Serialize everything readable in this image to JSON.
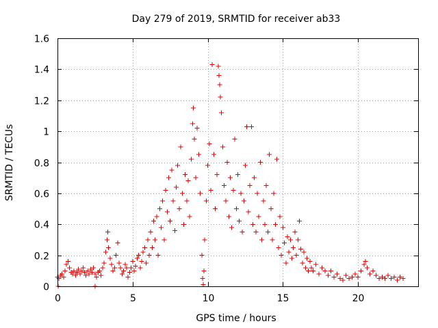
{
  "chart_data": {
    "type": "scatter",
    "title": "Day 279 of 2019, SRMTID for receiver ab33",
    "xlabel": "GPS time / hours",
    "ylabel": "SRMTID / TECUs",
    "xlim": [
      0,
      24
    ],
    "ylim": [
      0,
      1.6
    ],
    "xticks": [
      "0",
      "5",
      "10",
      "15",
      "20"
    ],
    "yticks": [
      "0",
      "0.2",
      "0.4",
      "0.6",
      "0.8",
      "1",
      "1.2",
      "1.4",
      "1.6"
    ],
    "grid": true,
    "marker": "plus",
    "color": "#e00000",
    "series": [
      {
        "name": "SRMTID",
        "points": [
          [
            0.0,
            0.06
          ],
          [
            0.1,
            0.05
          ],
          [
            0.2,
            0.07
          ],
          [
            0.3,
            0.08
          ],
          [
            0.4,
            0.06
          ],
          [
            0.5,
            0.1
          ],
          [
            0.6,
            0.14
          ],
          [
            0.7,
            0.16
          ],
          [
            0.8,
            0.12
          ],
          [
            0.9,
            0.09
          ],
          [
            1.0,
            0.08
          ],
          [
            1.1,
            0.1
          ],
          [
            1.2,
            0.07
          ],
          [
            1.3,
            0.09
          ],
          [
            1.4,
            0.11
          ],
          [
            1.5,
            0.08
          ],
          [
            1.6,
            0.1
          ],
          [
            1.7,
            0.12
          ],
          [
            1.8,
            0.09
          ],
          [
            1.9,
            0.07
          ],
          [
            2.0,
            0.1
          ],
          [
            2.1,
            0.08
          ],
          [
            2.2,
            0.11
          ],
          [
            2.3,
            0.09
          ],
          [
            2.4,
            0.12
          ],
          [
            2.5,
            0.08
          ],
          [
            2.6,
            0.06
          ],
          [
            2.7,
            0.09
          ],
          [
            2.8,
            0.1
          ],
          [
            2.9,
            0.07
          ],
          [
            3.0,
            0.12
          ],
          [
            3.1,
            0.15
          ],
          [
            3.2,
            0.22
          ],
          [
            3.3,
            0.3
          ],
          [
            3.35,
            0.35
          ],
          [
            3.4,
            0.25
          ],
          [
            3.5,
            0.18
          ],
          [
            3.6,
            0.14
          ],
          [
            3.7,
            0.1
          ],
          [
            3.8,
            0.12
          ],
          [
            3.9,
            0.2
          ],
          [
            4.0,
            0.28
          ],
          [
            4.1,
            0.15
          ],
          [
            4.2,
            0.12
          ],
          [
            4.3,
            0.08
          ],
          [
            4.4,
            0.1
          ],
          [
            4.5,
            0.14
          ],
          [
            4.6,
            0.12
          ],
          [
            4.7,
            0.06
          ],
          [
            4.8,
            0.09
          ],
          [
            4.9,
            0.12
          ],
          [
            5.0,
            0.16
          ],
          [
            5.1,
            0.1
          ],
          [
            5.2,
            0.13
          ],
          [
            5.3,
            0.18
          ],
          [
            5.4,
            0.2
          ],
          [
            5.5,
            0.12
          ],
          [
            5.6,
            0.16
          ],
          [
            5.7,
            0.22
          ],
          [
            5.8,
            0.25
          ],
          [
            5.9,
            0.15
          ],
          [
            6.0,
            0.3
          ],
          [
            6.1,
            0.2
          ],
          [
            6.2,
            0.35
          ],
          [
            6.3,
            0.25
          ],
          [
            6.4,
            0.42
          ],
          [
            6.5,
            0.3
          ],
          [
            6.6,
            0.45
          ],
          [
            6.7,
            0.2
          ],
          [
            6.8,
            0.5
          ],
          [
            6.9,
            0.38
          ],
          [
            7.0,
            0.55
          ],
          [
            7.1,
            0.3
          ],
          [
            7.2,
            0.62
          ],
          [
            7.3,
            0.48
          ],
          [
            7.4,
            0.7
          ],
          [
            7.5,
            0.42
          ],
          [
            7.6,
            0.75
          ],
          [
            7.7,
            0.55
          ],
          [
            7.8,
            0.36
          ],
          [
            7.9,
            0.64
          ],
          [
            8.0,
            0.78
          ],
          [
            8.1,
            0.5
          ],
          [
            8.2,
            0.9
          ],
          [
            8.3,
            0.6
          ],
          [
            8.4,
            0.4
          ],
          [
            8.5,
            0.72
          ],
          [
            8.6,
            0.55
          ],
          [
            8.7,
            0.68
          ],
          [
            8.8,
            0.45
          ],
          [
            8.9,
            0.82
          ],
          [
            9.0,
            1.05
          ],
          [
            9.05,
            1.15
          ],
          [
            9.1,
            0.95
          ],
          [
            9.2,
            0.7
          ],
          [
            9.3,
            1.02
          ],
          [
            9.4,
            0.85
          ],
          [
            9.5,
            0.6
          ],
          [
            9.6,
            0.2
          ],
          [
            9.65,
            0.05
          ],
          [
            9.7,
            0.01
          ],
          [
            9.75,
            0.1
          ],
          [
            9.8,
            0.3
          ],
          [
            9.9,
            0.55
          ],
          [
            10.0,
            0.78
          ],
          [
            10.1,
            0.92
          ],
          [
            10.2,
            0.62
          ],
          [
            10.3,
            1.43
          ],
          [
            10.4,
            0.85
          ],
          [
            10.5,
            0.5
          ],
          [
            10.6,
            0.72
          ],
          [
            10.7,
            1.42
          ],
          [
            10.75,
            1.36
          ],
          [
            10.8,
            1.3
          ],
          [
            10.85,
            1.22
          ],
          [
            10.9,
            1.12
          ],
          [
            11.0,
            0.9
          ],
          [
            11.1,
            0.65
          ],
          [
            11.2,
            0.55
          ],
          [
            11.3,
            0.8
          ],
          [
            11.4,
            0.45
          ],
          [
            11.5,
            0.7
          ],
          [
            11.6,
            0.38
          ],
          [
            11.7,
            0.62
          ],
          [
            11.8,
            0.95
          ],
          [
            11.9,
            0.5
          ],
          [
            12.0,
            0.72
          ],
          [
            12.1,
            0.42
          ],
          [
            12.2,
            0.6
          ],
          [
            12.3,
            0.35
          ],
          [
            12.4,
            0.55
          ],
          [
            12.5,
            0.78
          ],
          [
            12.6,
            1.03
          ],
          [
            12.7,
            0.48
          ],
          [
            12.8,
            0.65
          ],
          [
            12.9,
            1.03
          ],
          [
            13.0,
            0.4
          ],
          [
            13.1,
            0.7
          ],
          [
            13.2,
            0.35
          ],
          [
            13.3,
            0.6
          ],
          [
            13.4,
            0.45
          ],
          [
            13.5,
            0.8
          ],
          [
            13.6,
            0.3
          ],
          [
            13.7,
            0.55
          ],
          [
            13.8,
            0.4
          ],
          [
            13.9,
            0.65
          ],
          [
            14.0,
            0.35
          ],
          [
            14.1,
            0.85
          ],
          [
            14.2,
            0.5
          ],
          [
            14.3,
            0.3
          ],
          [
            14.4,
            0.6
          ],
          [
            14.5,
            0.4
          ],
          [
            14.6,
            0.82
          ],
          [
            14.7,
            0.25
          ],
          [
            14.8,
            0.45
          ],
          [
            14.9,
            0.2
          ],
          [
            15.0,
            0.38
          ],
          [
            15.1,
            0.28
          ],
          [
            15.2,
            0.15
          ],
          [
            15.3,
            0.32
          ],
          [
            15.4,
            0.22
          ],
          [
            15.5,
            0.3
          ],
          [
            15.6,
            0.18
          ],
          [
            15.7,
            0.25
          ],
          [
            15.8,
            0.35
          ],
          [
            15.9,
            0.2
          ],
          [
            16.0,
            0.3
          ],
          [
            16.1,
            0.42
          ],
          [
            16.2,
            0.24
          ],
          [
            16.3,
            0.15
          ],
          [
            16.4,
            0.22
          ],
          [
            16.5,
            0.12
          ],
          [
            16.6,
            0.18
          ],
          [
            16.7,
            0.1
          ],
          [
            16.8,
            0.16
          ],
          [
            16.9,
            0.12
          ],
          [
            17.0,
            0.1
          ],
          [
            17.2,
            0.14
          ],
          [
            17.4,
            0.08
          ],
          [
            17.6,
            0.12
          ],
          [
            17.8,
            0.1
          ],
          [
            18.0,
            0.07
          ],
          [
            18.2,
            0.1
          ],
          [
            18.4,
            0.06
          ],
          [
            18.6,
            0.08
          ],
          [
            18.8,
            0.05
          ],
          [
            19.0,
            0.04
          ],
          [
            19.2,
            0.07
          ],
          [
            19.4,
            0.05
          ],
          [
            19.6,
            0.06
          ],
          [
            19.8,
            0.08
          ],
          [
            20.0,
            0.06
          ],
          [
            20.2,
            0.1
          ],
          [
            20.4,
            0.14
          ],
          [
            20.5,
            0.16
          ],
          [
            20.6,
            0.12
          ],
          [
            20.8,
            0.08
          ],
          [
            21.0,
            0.1
          ],
          [
            21.2,
            0.07
          ],
          [
            21.4,
            0.05
          ],
          [
            21.6,
            0.06
          ],
          [
            21.8,
            0.05
          ],
          [
            22.0,
            0.07
          ],
          [
            22.2,
            0.05
          ],
          [
            22.4,
            0.06
          ],
          [
            22.6,
            0.04
          ],
          [
            22.8,
            0.06
          ],
          [
            23.0,
            0.05
          ],
          [
            0.05,
            0.0
          ],
          [
            2.5,
            0.0
          ]
        ]
      }
    ]
  }
}
